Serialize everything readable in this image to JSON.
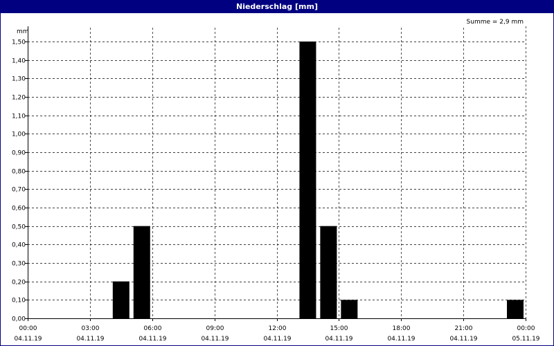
{
  "window": {
    "title": "Niederschlag [mm]"
  },
  "colors": {
    "titlebar": "#000080",
    "bar": "#000000",
    "grid": "#000000"
  },
  "chart_data": {
    "type": "bar",
    "title": "Niederschlag [mm]",
    "ylabel": "mm",
    "annotation": "Summe = 2,9 mm",
    "ylim": [
      0,
      1.5
    ],
    "y_ticks": [
      0,
      0.1,
      0.2,
      0.3,
      0.4,
      0.5,
      0.6,
      0.7,
      0.8,
      0.9,
      1.0,
      1.1,
      1.2,
      1.3,
      1.4,
      1.5
    ],
    "y_tick_labels": [
      "0,00",
      "0,10",
      "0,20",
      "0,30",
      "0,40",
      "0,50",
      "0,60",
      "0,70",
      "0,80",
      "0,90",
      "1,00",
      "1,10",
      "1,20",
      "1,30",
      "1,40",
      "1,50"
    ],
    "xlim_hours": [
      0,
      24
    ],
    "x_ticks": [
      {
        "hour": 0,
        "time": "00:00",
        "date": "04.11.19"
      },
      {
        "hour": 3,
        "time": "03:00",
        "date": "04.11.19"
      },
      {
        "hour": 6,
        "time": "06:00",
        "date": "04.11.19"
      },
      {
        "hour": 9,
        "time": "09:00",
        "date": "04.11.19"
      },
      {
        "hour": 12,
        "time": "12:00",
        "date": "04.11.19"
      },
      {
        "hour": 15,
        "time": "15:00",
        "date": "04.11.19"
      },
      {
        "hour": 18,
        "time": "18:00",
        "date": "04.11.19"
      },
      {
        "hour": 21,
        "time": "21:00",
        "date": "04.11.19"
      },
      {
        "hour": 24,
        "time": "00:00",
        "date": "05.11.19"
      }
    ],
    "grid": true,
    "bars": [
      {
        "hour": 4.5,
        "value": 0.2
      },
      {
        "hour": 5.5,
        "value": 0.5
      },
      {
        "hour": 13.5,
        "value": 1.5
      },
      {
        "hour": 14.5,
        "value": 0.5
      },
      {
        "hour": 15.5,
        "value": 0.1
      },
      {
        "hour": 23.5,
        "value": 0.1
      }
    ]
  }
}
